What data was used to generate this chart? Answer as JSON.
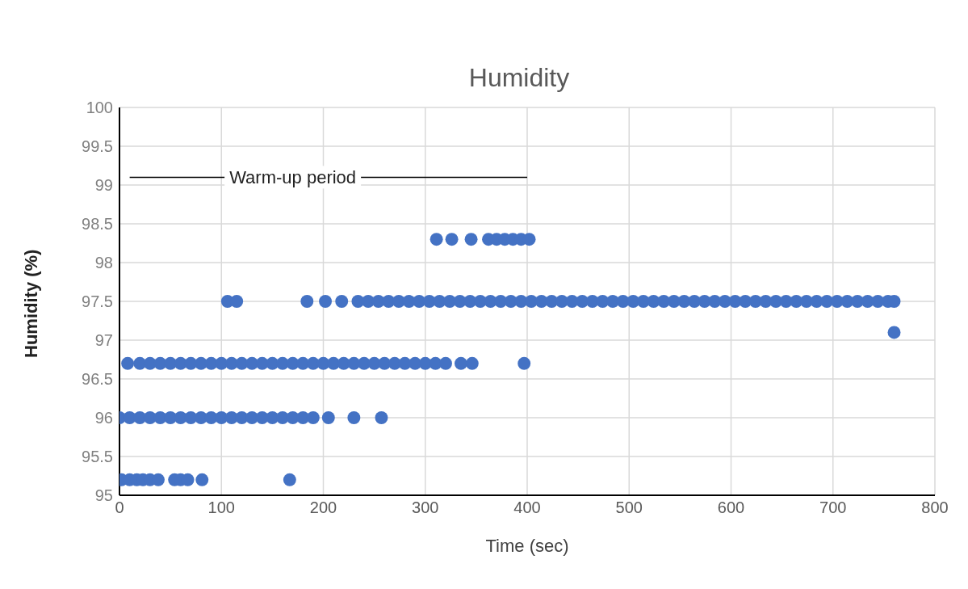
{
  "chart_data": {
    "type": "scatter",
    "title": "Humidity",
    "xlabel": "Time (sec)",
    "ylabel": "Humidity (%)",
    "series": [
      {
        "color": "#4472c4",
        "marker": "circle",
        "x": [
          2,
          10,
          17,
          23,
          30,
          38,
          54,
          60,
          67,
          81,
          167,
          0,
          10,
          20,
          30,
          40,
          50,
          60,
          70,
          80,
          90,
          100,
          110,
          120,
          130,
          140,
          150,
          160,
          170,
          180,
          190,
          205,
          230,
          257,
          8,
          20,
          30,
          40,
          50,
          60,
          70,
          80,
          90,
          100,
          110,
          120,
          130,
          140,
          150,
          160,
          170,
          180,
          190,
          200,
          210,
          220,
          230,
          240,
          250,
          260,
          270,
          280,
          290,
          300,
          310,
          320,
          335,
          346,
          397,
          106,
          115,
          184,
          202,
          218,
          234,
          244,
          254,
          264,
          274,
          284,
          294,
          304,
          314,
          324,
          334,
          344,
          354,
          364,
          374,
          384,
          394,
          404,
          414,
          424,
          434,
          444,
          454,
          464,
          474,
          484,
          494,
          504,
          514,
          524,
          534,
          544,
          554,
          564,
          574,
          584,
          594,
          604,
          614,
          624,
          634,
          644,
          654,
          664,
          674,
          684,
          694,
          704,
          714,
          724,
          734,
          744,
          754,
          760,
          311,
          326,
          345,
          362,
          370,
          378,
          386,
          394,
          402,
          760
        ],
        "values": [
          95.2,
          95.2,
          95.2,
          95.2,
          95.2,
          95.2,
          95.2,
          95.2,
          95.2,
          95.2,
          95.2,
          96,
          96,
          96,
          96,
          96,
          96,
          96,
          96,
          96,
          96,
          96,
          96,
          96,
          96,
          96,
          96,
          96,
          96,
          96,
          96,
          96,
          96,
          96,
          96.7,
          96.7,
          96.7,
          96.7,
          96.7,
          96.7,
          96.7,
          96.7,
          96.7,
          96.7,
          96.7,
          96.7,
          96.7,
          96.7,
          96.7,
          96.7,
          96.7,
          96.7,
          96.7,
          96.7,
          96.7,
          96.7,
          96.7,
          96.7,
          96.7,
          96.7,
          96.7,
          96.7,
          96.7,
          96.7,
          96.7,
          96.7,
          96.7,
          96.7,
          96.7,
          97.5,
          97.5,
          97.5,
          97.5,
          97.5,
          97.5,
          97.5,
          97.5,
          97.5,
          97.5,
          97.5,
          97.5,
          97.5,
          97.5,
          97.5,
          97.5,
          97.5,
          97.5,
          97.5,
          97.5,
          97.5,
          97.5,
          97.5,
          97.5,
          97.5,
          97.5,
          97.5,
          97.5,
          97.5,
          97.5,
          97.5,
          97.5,
          97.5,
          97.5,
          97.5,
          97.5,
          97.5,
          97.5,
          97.5,
          97.5,
          97.5,
          97.5,
          97.5,
          97.5,
          97.5,
          97.5,
          97.5,
          97.5,
          97.5,
          97.5,
          97.5,
          97.5,
          97.5,
          97.5,
          97.5,
          97.5,
          97.5,
          97.5,
          97.5,
          98.3,
          98.3,
          98.3,
          98.3,
          98.3,
          98.3,
          98.3,
          98.3,
          98.3,
          97.1
        ]
      },
      {
        "type": "line",
        "color": "#000000",
        "marker": "none",
        "x": [
          10,
          400
        ],
        "values": [
          99.1,
          99.1
        ]
      }
    ],
    "xlim": [
      0,
      800
    ],
    "xticks": [
      0,
      100,
      200,
      300,
      400,
      500,
      600,
      700,
      800
    ],
    "ylim": [
      95,
      100
    ],
    "yticks": [
      95,
      95.5,
      96,
      96.5,
      97,
      97.5,
      98,
      98.5,
      99,
      99.5,
      100
    ],
    "grid": true,
    "annotations": [
      {
        "text": "Warm-up period",
        "x": 170,
        "y": 99.1
      }
    ]
  }
}
